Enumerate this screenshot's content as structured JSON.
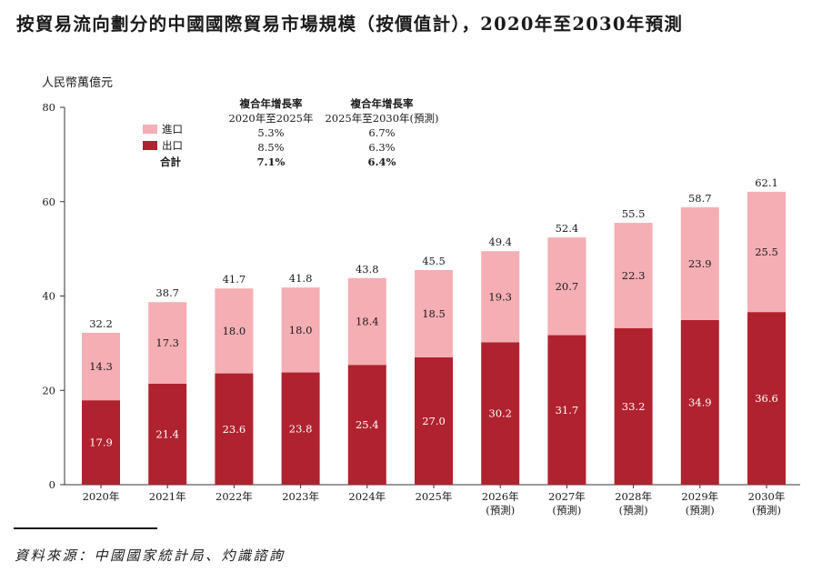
{
  "title": "按貿易流向劃分的中國國際貿易市場規模（按價值計），2020年至2030年預測",
  "unit_label": "人民幣萬億元",
  "source": "資料來源：中國國家統計局、灼識諮詢",
  "cagr_table": {
    "col1_header": "複合年增長率",
    "col1_sub": "2020年至2025年",
    "col2_header": "複合年增長率",
    "col2_sub": "2025年至2030年(預測)",
    "rows": [
      {
        "label": "進口",
        "col1": "5.3%",
        "col2": "6.7%"
      },
      {
        "label": "出口",
        "col1": "8.5%",
        "col2": "6.3%"
      },
      {
        "label": "合計",
        "col1": "7.1%",
        "col2": "6.4%"
      }
    ]
  },
  "colors": {
    "import": "#f4aeb4",
    "export": "#b0222f",
    "axis": "#333333"
  },
  "chart_data": {
    "type": "bar",
    "stacked": true,
    "categories": [
      "2020年",
      "2021年",
      "2022年",
      "2023年",
      "2024年",
      "2025年",
      "2026年\n(預測)",
      "2027年\n(預測)",
      "2028年\n(預測)",
      "2029年\n(預測)",
      "2030年\n(預測)"
    ],
    "series": [
      {
        "name": "出口",
        "values": [
          17.9,
          21.4,
          23.6,
          23.8,
          25.4,
          27.0,
          30.2,
          31.7,
          33.2,
          34.9,
          36.6
        ]
      },
      {
        "name": "進口",
        "values": [
          14.3,
          17.3,
          18.0,
          18.0,
          18.4,
          18.5,
          19.3,
          20.7,
          22.3,
          23.9,
          25.5
        ]
      }
    ],
    "totals": [
      32.2,
      38.7,
      41.7,
      41.8,
      43.8,
      45.5,
      49.4,
      52.4,
      55.5,
      58.7,
      62.1
    ],
    "ylabel": "人民幣萬億元",
    "ylim": [
      0,
      80
    ],
    "yticks": [
      0,
      20,
      40,
      60,
      80
    ],
    "grid": false,
    "legend": "top-left"
  }
}
